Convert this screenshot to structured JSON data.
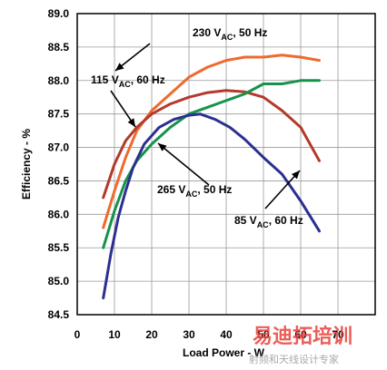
{
  "chart_data": {
    "type": "line",
    "xlabel": "Load Power - W",
    "ylabel": "Efficiency - %",
    "xlim": [
      0,
      80
    ],
    "ylim": [
      84.5,
      89.0
    ],
    "xticks": [
      0,
      10,
      20,
      30,
      40,
      50,
      60,
      70
    ],
    "yticks": [
      84.5,
      85.0,
      85.5,
      86.0,
      86.5,
      87.0,
      87.5,
      88.0,
      88.5,
      89.0
    ],
    "ytick_labels": [
      "84.5",
      "85.0",
      "85.5",
      "86.0",
      "86.5",
      "87.0",
      "87.5",
      "88.0",
      "88.5",
      "89.0"
    ],
    "grid": true,
    "series": [
      {
        "name": "230 VAC, 50 Hz",
        "label_main": "230 V",
        "label_sub": "AC",
        "label_rest": ", 50 Hz",
        "color": "#ee6a2e",
        "x": [
          7,
          10,
          13,
          16,
          20,
          25,
          30,
          35,
          40,
          45,
          50,
          55,
          60,
          65
        ],
        "y": [
          85.8,
          86.35,
          86.85,
          87.25,
          87.55,
          87.8,
          88.05,
          88.2,
          88.3,
          88.35,
          88.35,
          88.38,
          88.35,
          88.3
        ]
      },
      {
        "name": "115 VAC, 60 Hz",
        "label_main": "115 V",
        "label_sub": "AC",
        "label_rest": ", 60 Hz",
        "color": "#b33a2b",
        "x": [
          7,
          10,
          13,
          16,
          20,
          25,
          30,
          35,
          40,
          45,
          50,
          55,
          60,
          65
        ],
        "y": [
          86.25,
          86.75,
          87.1,
          87.3,
          87.5,
          87.65,
          87.75,
          87.82,
          87.85,
          87.83,
          87.75,
          87.55,
          87.3,
          86.8
        ]
      },
      {
        "name": "265 VAC, 50 Hz",
        "label_main": "265 V",
        "label_sub": "AC",
        "label_rest": ", 50 Hz",
        "color": "#17924a",
        "x": [
          7,
          10,
          13,
          16,
          20,
          25,
          30,
          35,
          40,
          45,
          50,
          55,
          60,
          65
        ],
        "y": [
          85.5,
          86.05,
          86.5,
          86.8,
          87.05,
          87.3,
          87.5,
          87.6,
          87.7,
          87.8,
          87.95,
          87.95,
          88.0,
          88.0
        ]
      },
      {
        "name": "85 VAC, 60 Hz",
        "label_main": "85 V",
        "label_sub": "AC",
        "label_rest": ", 60 Hz",
        "color": "#2c2f8f",
        "x": [
          7,
          9,
          11,
          13,
          15,
          18,
          22,
          26,
          30,
          33,
          37,
          41,
          45,
          50,
          55,
          60,
          65
        ],
        "y": [
          84.75,
          85.4,
          85.95,
          86.35,
          86.7,
          87.05,
          87.3,
          87.42,
          87.48,
          87.5,
          87.42,
          87.3,
          87.12,
          86.85,
          86.6,
          86.2,
          85.75
        ]
      }
    ]
  },
  "watermark": {
    "main": "易迪拓培训",
    "sub": "射频和天线设计专家"
  }
}
